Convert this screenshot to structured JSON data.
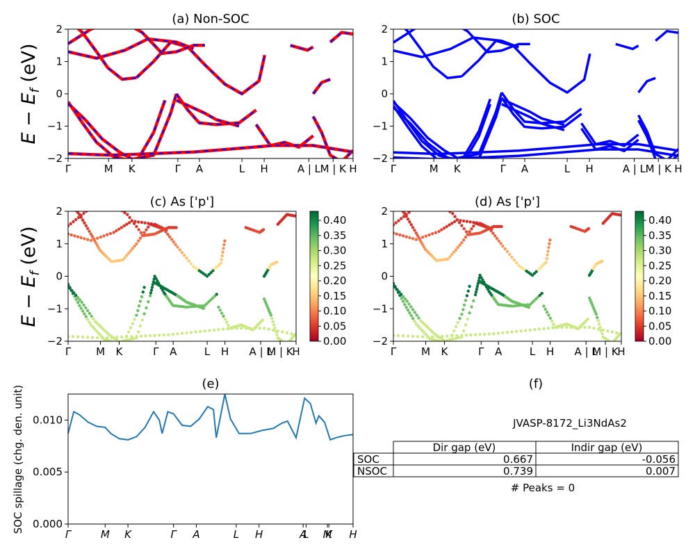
{
  "chart_data": [
    {
      "type": "line",
      "panel": "a",
      "title": "(a) Non-SOC",
      "ylabel": "E − E_f (eV)",
      "ylim": [
        -2,
        2
      ],
      "yticks": [
        "2",
        "1",
        "0",
        "−1",
        "−2"
      ],
      "xtick_labels": [
        "Γ",
        "M",
        "K",
        "Γ",
        "A",
        "L",
        "H",
        "A | L",
        "M | K",
        "H"
      ],
      "series": [
        {
          "color": "#ff0000",
          "style": "solid",
          "bands": [
            {
              "x": [
                0,
                0.05,
                0.1,
                0.14,
                0.19,
                0.24
              ],
              "y": [
                2.3,
                1.9,
                1.3,
                0.8,
                0.45,
                0.5
              ]
            },
            {
              "x": [
                0.24,
                0.3,
                0.36,
                0.42,
                0.48,
                0.55,
                0.61,
                0.67,
                0.69
              ],
              "y": [
                0.5,
                1.0,
                1.6,
                1.45,
                0.9,
                0.3,
                0.0,
                0.4,
                1.2
              ]
            },
            {
              "x": [
                0,
                0.1,
                0.2,
                0.28,
                0.38,
                0.44
              ],
              "y": [
                1.3,
                1.1,
                1.35,
                1.7,
                1.6,
                1.4
              ]
            },
            {
              "x": [
                0,
                0.08,
                0.18,
                0.26,
                0.33,
                0.38,
                0.44,
                0.48
              ],
              "y": [
                1.55,
                2.0,
                2.3,
                1.9,
                1.25,
                1.3,
                1.5,
                1.5
              ]
            },
            {
              "x": [
                0,
                0.05,
                0.1,
                0.16,
                0.21,
                0.3,
                0.36,
                0.38
              ],
              "y": [
                -0.25,
                -0.9,
                -1.5,
                -1.95,
                -2.05,
                -1.9,
                -0.6,
                0.0
              ]
            },
            {
              "x": [
                0,
                0.06,
                0.12,
                0.18,
                0.24,
                0.3,
                0.34
              ],
              "y": [
                -0.3,
                -0.8,
                -1.4,
                -1.8,
                -2.1,
                -1.2,
                -0.2
              ]
            },
            {
              "x": [
                0.38,
                0.42,
                0.46,
                0.52,
                0.6,
                0.66
              ],
              "y": [
                0.0,
                -0.5,
                -0.9,
                -0.95,
                -0.9,
                -0.5
              ]
            },
            {
              "x": [
                0.38,
                0.43,
                0.48,
                0.52,
                0.56,
                0.6
              ],
              "y": [
                -0.2,
                -0.4,
                -0.6,
                -0.8,
                -0.9,
                -1.0
              ]
            },
            {
              "x": [
                0.66,
                0.71,
                0.76,
                0.81,
                0.86
              ],
              "y": [
                -0.95,
                -1.6,
                -1.5,
                -1.65,
                -1.3
              ]
            },
            {
              "x": [
                0.86,
                0.89,
                0.92,
                0.96,
                1.0
              ],
              "y": [
                -0.7,
                -1.2,
                -1.9,
                -2.1,
                -1.75
              ]
            },
            {
              "x": [
                0,
                0.15,
                0.3,
                0.44,
                0.58,
                0.72,
                0.86,
                1.0
              ],
              "y": [
                -1.85,
                -1.9,
                -1.85,
                -1.8,
                -1.7,
                -1.6,
                -1.6,
                -1.8
              ]
            },
            {
              "x": [
                0.86,
                0.89,
                0.92
              ],
              "y": [
                0.0,
                0.35,
                0.45
              ]
            },
            {
              "x": [
                0.78,
                0.84,
                0.86
              ],
              "y": [
                1.5,
                1.35,
                1.45
              ]
            },
            {
              "x": [
                0.92,
                0.96,
                1.0
              ],
              "y": [
                1.6,
                1.9,
                1.85
              ]
            }
          ]
        },
        {
          "color": "#0000ff",
          "style": "dashed",
          "bands": "same as Non-SOC red bands"
        }
      ]
    },
    {
      "type": "line",
      "panel": "b",
      "title": "(b) SOC",
      "ylim": [
        -2,
        2
      ],
      "yticks": [
        "2",
        "1",
        "0",
        "−1",
        "−2"
      ],
      "xtick_labels": [
        "Γ",
        "M",
        "K",
        "Γ",
        "A",
        "L",
        "H",
        "A | L",
        "M | K",
        "H"
      ],
      "series": [
        {
          "color": "#0000ff",
          "style": "solid",
          "bands": "spin-orbit split bands"
        }
      ]
    },
    {
      "type": "scatter",
      "panel": "c",
      "title": "(c)  As ['p']",
      "ylabel": "E − E_f (eV)",
      "ylim": [
        -2,
        2
      ],
      "yticks": [
        "2",
        "1",
        "0",
        "−1",
        "−2"
      ],
      "xtick_labels": [
        "Γ",
        "M",
        "K",
        "Γ",
        "A",
        "L",
        "H",
        "A | L",
        "M | K",
        "H"
      ],
      "colorbar": {
        "colormap": "RdYlGn",
        "min": 0.0,
        "max": 0.43,
        "ticks": [
          "0.40",
          "0.35",
          "0.30",
          "0.25",
          "0.20",
          "0.15",
          "0.10",
          "0.05",
          "0.00"
        ]
      }
    },
    {
      "type": "scatter",
      "panel": "d",
      "title": "(d) As ['p']",
      "ylim": [
        -2,
        2
      ],
      "yticks": [
        "2",
        "1",
        "0",
        "−1",
        "−2"
      ],
      "xtick_labels": [
        "Γ",
        "M",
        "K",
        "Γ",
        "A",
        "L",
        "H",
        "A | L",
        "M | K",
        "H"
      ],
      "colorbar": {
        "colormap": "RdYlGn",
        "min": 0.0,
        "max": 0.43,
        "ticks": [
          "0.40",
          "0.35",
          "0.30",
          "0.25",
          "0.20",
          "0.15",
          "0.10",
          "0.05",
          "0.00"
        ]
      }
    },
    {
      "type": "line",
      "panel": "e",
      "title": "(e)",
      "ylabel": "SOC spillage (chg. den. unit)",
      "ylim": [
        0,
        0.0125
      ],
      "yticks": [
        "0.010",
        "0.005",
        "0.000"
      ],
      "xtick_labels": [
        "Γ",
        "M",
        "K",
        "Γ",
        "A",
        "L",
        "H",
        "A",
        "L",
        "M",
        "K",
        "H"
      ],
      "series": [
        {
          "color": "#1f77b4",
          "x": [
            0,
            0.02,
            0.04,
            0.07,
            0.1,
            0.13,
            0.15,
            0.18,
            0.21,
            0.24,
            0.27,
            0.3,
            0.32,
            0.33,
            0.35,
            0.37,
            0.4,
            0.43,
            0.46,
            0.49,
            0.51,
            0.52,
            0.55,
            0.57,
            0.6,
            0.64,
            0.68,
            0.72,
            0.75,
            0.77,
            0.8,
            0.83,
            0.85,
            0.87,
            0.88,
            0.9,
            0.92,
            0.94,
            0.97,
            1.0
          ],
          "y": [
            0.0087,
            0.0108,
            0.0105,
            0.0098,
            0.0094,
            0.0093,
            0.0087,
            0.0082,
            0.0081,
            0.0084,
            0.0093,
            0.0108,
            0.01,
            0.0087,
            0.0108,
            0.0106,
            0.0095,
            0.0094,
            0.0101,
            0.0113,
            0.011,
            0.0083,
            0.0125,
            0.0101,
            0.0087,
            0.0087,
            0.009,
            0.0092,
            0.0097,
            0.0099,
            0.0083,
            0.0121,
            0.0116,
            0.0097,
            0.0104,
            0.0098,
            0.0081,
            0.0083,
            0.0085,
            0.0086
          ]
        }
      ]
    }
  ],
  "panel_f": {
    "title": "(f)",
    "material": "JVASP-8172_Li3NdAs2",
    "table": {
      "headers": [
        "Dir gap (eV)",
        "Indir gap (eV)"
      ],
      "rows": [
        {
          "label": "SOC",
          "dir": "0.667",
          "indir": "-0.056"
        },
        {
          "label": "NSOC",
          "dir": "0.739",
          "indir": "0.007"
        }
      ]
    },
    "peaks": "# Peaks = 0"
  },
  "colors": {
    "nsoc": "#ff0000",
    "soc": "#0000ff",
    "spillage": "#1f77b4"
  }
}
